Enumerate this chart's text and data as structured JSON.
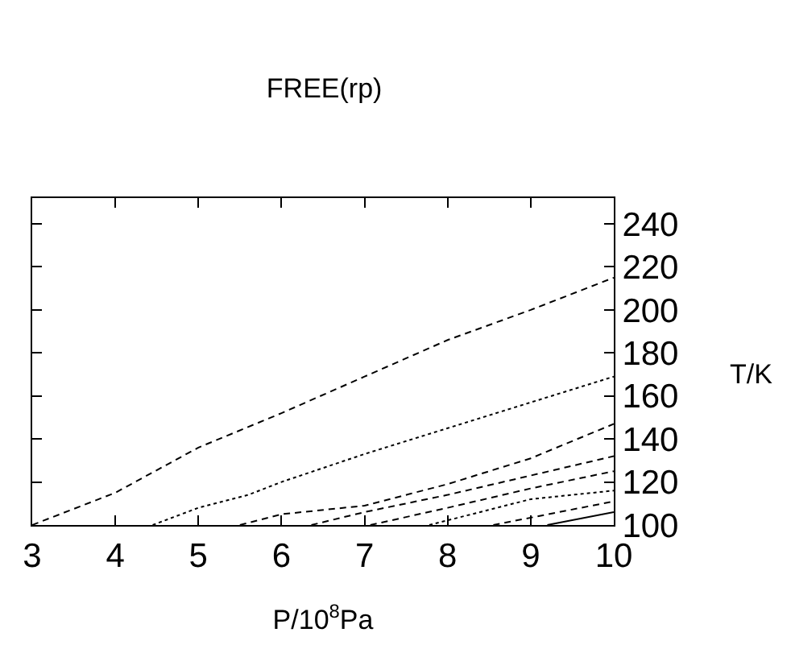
{
  "chart_data": {
    "type": "line",
    "title": "FREE(rp)",
    "xlabel": "P/10$^{8}$Pa",
    "ylabel": "T/K",
    "xlim": [
      3,
      10
    ],
    "ylim": [
      100,
      252
    ],
    "xticks": [
      3,
      4,
      5,
      6,
      7,
      8,
      9,
      10
    ],
    "yticks": [
      100,
      120,
      140,
      160,
      180,
      200,
      220,
      240
    ],
    "series": [
      {
        "color": "#000000",
        "line_style": "dashed",
        "x": [
          3,
          4,
          5,
          6,
          7,
          8,
          9,
          10
        ],
        "values": [
          100,
          115,
          136,
          152,
          169,
          186,
          200,
          215
        ]
      },
      {
        "color": "#000000",
        "line_style": "dotted",
        "x": [
          4.45,
          5,
          5.6,
          6,
          7,
          8,
          9,
          10
        ],
        "values": [
          100,
          108,
          114,
          120,
          133,
          145,
          157,
          169
        ]
      },
      {
        "color": "#000000",
        "line_style": "dashed",
        "x": [
          5.5,
          6,
          7,
          8,
          9,
          10
        ],
        "values": [
          100,
          105,
          109,
          119,
          131,
          147
        ]
      },
      {
        "color": "#000000",
        "line_style": "dashed",
        "x": [
          6.36,
          7,
          8,
          9,
          10
        ],
        "values": [
          100,
          106,
          114,
          123,
          132
        ]
      },
      {
        "color": "#000000",
        "line_style": "dashed",
        "x": [
          7.07,
          8,
          9,
          10
        ],
        "values": [
          100,
          108,
          117,
          125
        ]
      },
      {
        "color": "#000000",
        "line_style": "dotted",
        "x": [
          7.78,
          9,
          10
        ],
        "values": [
          100,
          112,
          116
        ]
      },
      {
        "color": "#000000",
        "line_style": "dashed",
        "x": [
          8.55,
          10
        ],
        "values": [
          100,
          111
        ]
      },
      {
        "color": "#000000",
        "line_style": "solid",
        "x": [
          9.2,
          10
        ],
        "values": [
          100,
          106
        ]
      }
    ]
  }
}
